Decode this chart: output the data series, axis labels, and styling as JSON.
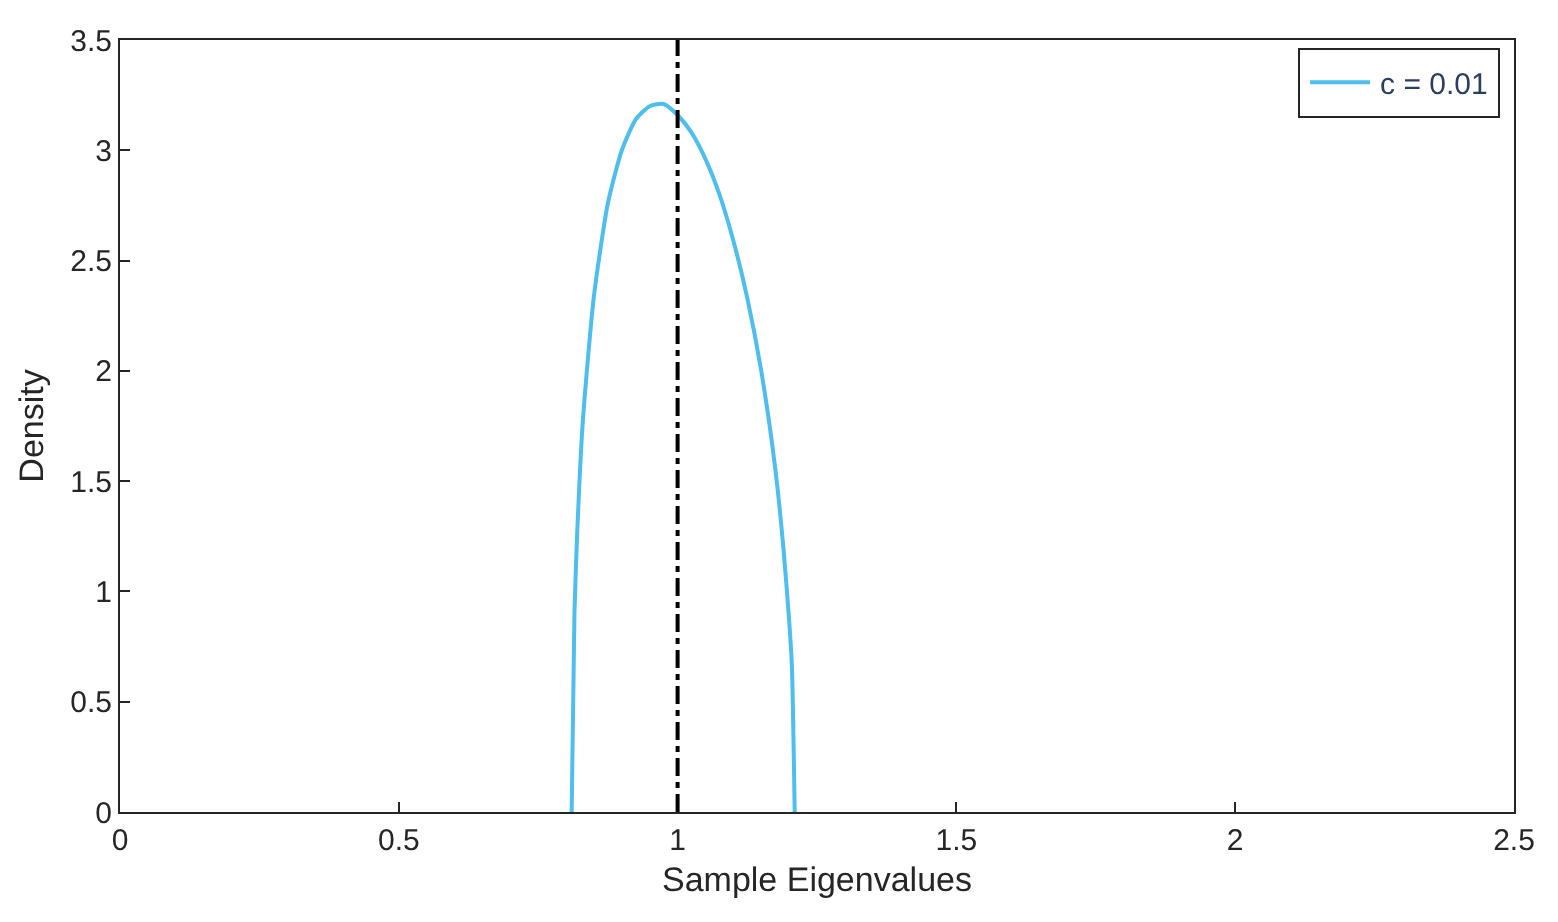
{
  "chart_data": {
    "type": "line",
    "xlabel": "Sample Eigenvalues",
    "ylabel": "Density",
    "x": [
      0.81,
      0.815,
      0.82,
      0.83,
      0.85,
      0.875,
      0.9,
      0.925,
      0.95,
      0.975,
      1.0,
      1.025,
      1.05,
      1.075,
      1.1,
      1.125,
      1.15,
      1.175,
      1.19,
      1.2,
      1.205,
      1.21
    ],
    "series": [
      {
        "name": "c = 0.01",
        "color": "#4dbeee",
        "values": [
          0,
          0.9,
          1.27,
          1.77,
          2.34,
          2.76,
          3.0,
          3.14,
          3.2,
          3.21,
          3.16,
          3.08,
          2.96,
          2.8,
          2.59,
          2.33,
          2.0,
          1.56,
          1.19,
          0.87,
          0.66,
          0
        ]
      }
    ],
    "xlim": [
      0,
      2.5
    ],
    "xticks": [
      0,
      0.5,
      1,
      1.5,
      2,
      2.5
    ],
    "ylim": [
      0,
      3.5
    ],
    "yticks": [
      0,
      0.5,
      1,
      1.5,
      2,
      2.5,
      3,
      3.5
    ],
    "ref_lines": [
      {
        "axis": "x",
        "value": 1,
        "color": "#000000",
        "line_style": "dashed"
      }
    ],
    "legend": "top right",
    "marker": "none",
    "line_style": "solid"
  }
}
